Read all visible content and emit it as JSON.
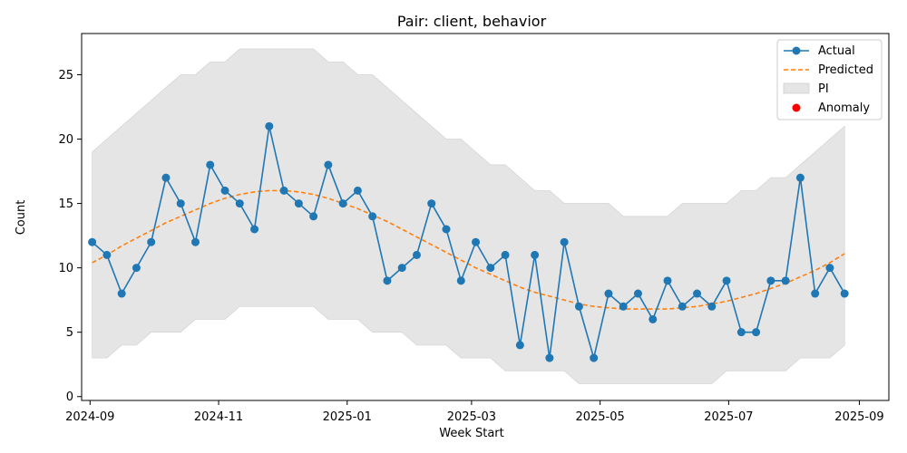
{
  "chart_data": {
    "type": "line",
    "title": "Pair: client, behavior",
    "xlabel": "Week Start",
    "ylabel": "Count",
    "xlim": [
      "2024-08-28",
      "2025-09-15"
    ],
    "ylim": [
      -0.3,
      28.2
    ],
    "grid": false,
    "legend_placement": "top-right",
    "x_ticks": [
      "2024-09",
      "2024-11",
      "2025-01",
      "2025-03",
      "2025-05",
      "2025-07",
      "2025-09"
    ],
    "x_tick_dates": [
      "2024-09-01",
      "2024-11-01",
      "2025-01-01",
      "2025-03-01",
      "2025-05-01",
      "2025-07-01",
      "2025-09-01"
    ],
    "y_ticks": [
      0,
      5,
      10,
      15,
      20,
      25
    ],
    "x": [
      "2024-09-02",
      "2024-09-09",
      "2024-09-16",
      "2024-09-23",
      "2024-09-30",
      "2024-10-07",
      "2024-10-14",
      "2024-10-21",
      "2024-10-28",
      "2024-11-04",
      "2024-11-11",
      "2024-11-18",
      "2024-11-25",
      "2024-12-02",
      "2024-12-09",
      "2024-12-16",
      "2024-12-23",
      "2024-12-30",
      "2025-01-06",
      "2025-01-13",
      "2025-01-20",
      "2025-01-27",
      "2025-02-03",
      "2025-02-10",
      "2025-02-17",
      "2025-02-24",
      "2025-03-03",
      "2025-03-10",
      "2025-03-17",
      "2025-03-24",
      "2025-03-31",
      "2025-04-07",
      "2025-04-14",
      "2025-04-21",
      "2025-04-28",
      "2025-05-05",
      "2025-05-12",
      "2025-05-19",
      "2025-05-26",
      "2025-06-02",
      "2025-06-09",
      "2025-06-16",
      "2025-06-23",
      "2025-06-30",
      "2025-07-07",
      "2025-07-14",
      "2025-07-21",
      "2025-07-28",
      "2025-08-04",
      "2025-08-11",
      "2025-08-18",
      "2025-08-25"
    ],
    "series": [
      {
        "name": "Actual",
        "color": "#1f77b4",
        "style": "solid-with-circle-markers",
        "values": [
          12,
          11,
          8,
          10,
          12,
          17,
          15,
          12,
          18,
          16,
          15,
          13,
          21,
          16,
          15,
          14,
          18,
          15,
          16,
          14,
          9,
          10,
          11,
          15,
          13,
          9,
          12,
          10,
          11,
          4,
          11,
          3,
          12,
          7,
          3,
          8,
          7,
          8,
          6,
          9,
          7,
          8,
          7,
          9,
          5,
          5,
          9,
          9,
          17,
          8,
          10,
          8
        ]
      },
      {
        "name": "Predicted",
        "color": "#ff7f0e",
        "style": "dashed",
        "values": [
          10.4,
          11.0,
          11.7,
          12.3,
          12.9,
          13.5,
          14.0,
          14.5,
          15.0,
          15.4,
          15.7,
          15.9,
          16.0,
          16.0,
          15.9,
          15.7,
          15.4,
          15.0,
          14.6,
          14.1,
          13.6,
          13.0,
          12.4,
          11.8,
          11.2,
          10.6,
          10.0,
          9.5,
          9.0,
          8.5,
          8.1,
          7.8,
          7.5,
          7.2,
          7.0,
          6.9,
          6.8,
          6.8,
          6.8,
          6.8,
          6.9,
          7.0,
          7.2,
          7.4,
          7.7,
          8.0,
          8.4,
          8.8,
          9.3,
          9.8,
          10.4,
          11.1
        ]
      }
    ],
    "interval": {
      "name": "PI",
      "color": "#d9d9d9",
      "lower": [
        3,
        3,
        4,
        4,
        5,
        5,
        5,
        6,
        6,
        6,
        7,
        7,
        7,
        7,
        7,
        7,
        6,
        6,
        6,
        5,
        5,
        5,
        4,
        4,
        4,
        3,
        3,
        3,
        2,
        2,
        2,
        2,
        2,
        1,
        1,
        1,
        1,
        1,
        1,
        1,
        1,
        1,
        1,
        2,
        2,
        2,
        2,
        2,
        3,
        3,
        3,
        4
      ],
      "upper": [
        19,
        20,
        21,
        22,
        23,
        24,
        25,
        25,
        26,
        26,
        27,
        27,
        27,
        27,
        27,
        27,
        26,
        26,
        25,
        25,
        24,
        23,
        22,
        21,
        20,
        20,
        19,
        18,
        18,
        17,
        16,
        16,
        15,
        15,
        15,
        15,
        14,
        14,
        14,
        14,
        15,
        15,
        15,
        15,
        16,
        16,
        17,
        17,
        18,
        19,
        20,
        21
      ]
    },
    "anomalies": {
      "name": "Anomaly",
      "color": "#ff0000",
      "points": []
    },
    "legend": [
      "Actual",
      "Predicted",
      "PI",
      "Anomaly"
    ]
  }
}
